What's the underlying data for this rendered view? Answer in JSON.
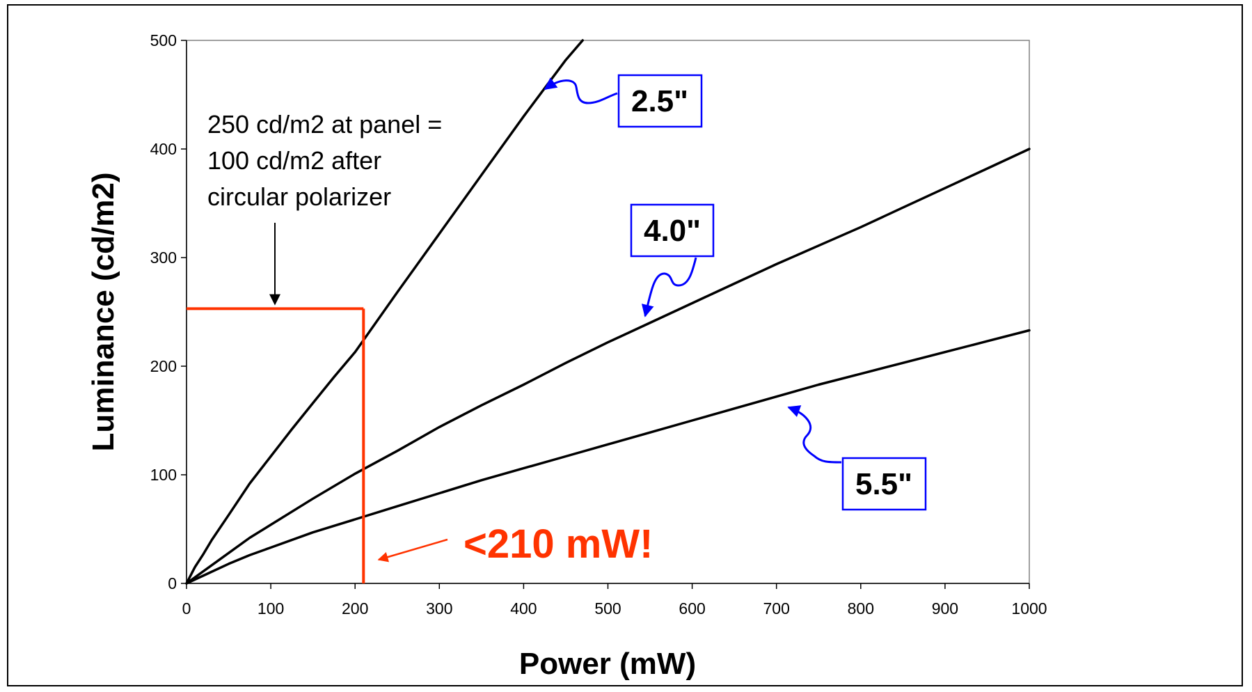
{
  "chart_data": {
    "type": "line",
    "xlabel": "Power (mW)",
    "ylabel": "Luminance  (cd/m2)",
    "xlim": [
      0,
      1000
    ],
    "ylim": [
      0,
      500
    ],
    "xticks": [
      0,
      100,
      200,
      300,
      400,
      500,
      600,
      700,
      800,
      900,
      1000
    ],
    "yticks": [
      0,
      100,
      200,
      300,
      400,
      500
    ],
    "grid": false,
    "series": [
      {
        "name": "2.5\"",
        "x": [
          0,
          10,
          20,
          30,
          50,
          75,
          100,
          125,
          150,
          175,
          200,
          250,
          300,
          350,
          400,
          450,
          470
        ],
        "y": [
          0,
          15,
          27,
          40,
          63,
          92,
          117,
          142,
          166,
          190,
          213,
          268,
          322,
          376,
          430,
          482,
          500
        ]
      },
      {
        "name": "4.0\"",
        "x": [
          0,
          25,
          50,
          75,
          100,
          150,
          200,
          250,
          300,
          350,
          400,
          450,
          500,
          550,
          600,
          650,
          700,
          750,
          800,
          850,
          900,
          950,
          1000
        ],
        "y": [
          0,
          14,
          28,
          42,
          54,
          78,
          101,
          122,
          144,
          164,
          183,
          203,
          222,
          240,
          258,
          276,
          294,
          311,
          328,
          346,
          364,
          382,
          400
        ]
      },
      {
        "name": "5.5\"",
        "x": [
          0,
          25,
          50,
          75,
          100,
          150,
          200,
          250,
          300,
          350,
          400,
          450,
          500,
          550,
          600,
          650,
          700,
          750,
          800,
          850,
          900,
          950,
          1000
        ],
        "y": [
          0,
          9,
          18,
          26,
          33,
          47,
          59,
          71,
          83,
          95,
          106,
          117,
          128,
          139,
          150,
          161,
          172,
          183,
          193,
          203,
          213,
          223,
          233
        ]
      }
    ],
    "reference_lines": {
      "x": 210,
      "y": 253,
      "color": "#ff3300"
    },
    "annotations": {
      "note_lines": [
        "250 cd/m2 at panel =",
        "100 cd/m2 after",
        "circular polarizer"
      ],
      "highlight": "<210 mW!",
      "highlight_color": "#ff3300",
      "callout_color": "#0000ff",
      "callouts": [
        "2.5\"",
        "4.0\"",
        "5.5\""
      ]
    }
  }
}
